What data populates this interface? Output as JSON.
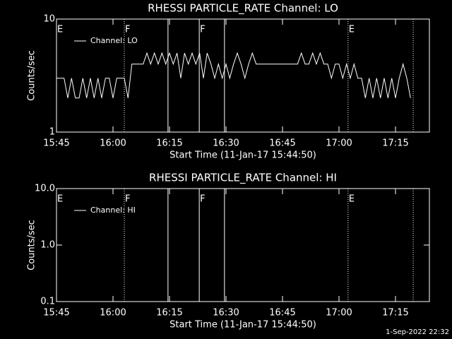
{
  "chart_data": [
    {
      "type": "line",
      "title": "RHESSI PARTICLE_RATE Channel: LO",
      "x_label": "Start Time (11-Jan-17 15:44:50)",
      "y_label": "Counts/sec",
      "log_y": true,
      "legend": "upper left",
      "xlim": [
        945,
        1044
      ],
      "ylim": [
        1,
        10
      ],
      "xticks": [
        {
          "value": 945,
          "label": "15:45"
        },
        {
          "value": 960,
          "label": "16:00"
        },
        {
          "value": 975,
          "label": "16:15"
        },
        {
          "value": 990,
          "label": "16:30"
        },
        {
          "value": 1005,
          "label": "16:45"
        },
        {
          "value": 1020,
          "label": "17:00"
        },
        {
          "value": 1035,
          "label": "17:15"
        }
      ],
      "yticks": [
        1,
        10
      ],
      "vlines": [
        {
          "x": 963,
          "style": "dotted"
        },
        {
          "x": 974.6,
          "style": "solid"
        },
        {
          "x": 982.9,
          "style": "solid"
        },
        {
          "x": 989.6,
          "style": "solid"
        },
        {
          "x": 1022.4,
          "style": "dotted"
        },
        {
          "x": 1039.7,
          "style": "dotted"
        }
      ],
      "flags": [
        {
          "x": 945,
          "label": "E"
        },
        {
          "x": 963,
          "label": "F"
        },
        {
          "x": 982.9,
          "label": "F"
        },
        {
          "x": 1022.4,
          "label": "E"
        }
      ],
      "x": [
        945,
        946,
        947,
        948,
        949,
        950,
        951,
        952,
        953,
        954,
        955,
        956,
        957,
        958,
        959,
        960,
        961,
        962,
        963,
        964,
        965,
        966,
        967,
        968,
        969,
        970,
        971,
        972,
        973,
        974,
        975,
        976,
        977,
        978,
        979,
        980,
        981,
        982,
        983,
        984,
        985,
        986,
        987,
        988,
        989,
        990,
        991,
        992,
        993,
        994,
        995,
        996,
        997,
        998,
        999,
        1000,
        1001,
        1002,
        1003,
        1004,
        1005,
        1006,
        1007,
        1008,
        1009,
        1010,
        1011,
        1012,
        1013,
        1014,
        1015,
        1016,
        1017,
        1018,
        1019,
        1020,
        1021,
        1022,
        1023,
        1024,
        1025,
        1026,
        1027,
        1028,
        1029,
        1030,
        1031,
        1032,
        1033,
        1034,
        1035,
        1036,
        1037,
        1038,
        1039
      ],
      "series": [
        {
          "name": "Channel: LO",
          "color": "#ffffff",
          "values": [
            3,
            3,
            3,
            2,
            3,
            2,
            2,
            3,
            2,
            3,
            2,
            3,
            2,
            3,
            3,
            2,
            3,
            3,
            3,
            2,
            4,
            4,
            4,
            4,
            5,
            4,
            5,
            4,
            5,
            4,
            5,
            4,
            5,
            3,
            5,
            4,
            5,
            4,
            5,
            3,
            5,
            4,
            3,
            4,
            3,
            4,
            3,
            4,
            5,
            4,
            3,
            4,
            5,
            4,
            4,
            4,
            4,
            4,
            4,
            4,
            4,
            4,
            4,
            4,
            4,
            5,
            4,
            4,
            5,
            4,
            5,
            4,
            4,
            3,
            4,
            4,
            3,
            4,
            3,
            4,
            3,
            3,
            2,
            3,
            2,
            3,
            2,
            3,
            2,
            3,
            2,
            3,
            4,
            3,
            2
          ]
        }
      ]
    },
    {
      "type": "line",
      "title": "RHESSI PARTICLE_RATE Channel: HI",
      "x_label": "Start Time (11-Jan-17 15:44:50)",
      "y_label": "Counts/sec",
      "log_y": true,
      "legend": "upper left",
      "xlim": [
        945,
        1044
      ],
      "ylim": [
        0.1,
        10
      ],
      "xticks": [
        {
          "value": 945,
          "label": "15:45"
        },
        {
          "value": 960,
          "label": "16:00"
        },
        {
          "value": 975,
          "label": "16:15"
        },
        {
          "value": 990,
          "label": "16:30"
        },
        {
          "value": 1005,
          "label": "16:45"
        },
        {
          "value": 1020,
          "label": "17:00"
        },
        {
          "value": 1035,
          "label": "17:15"
        }
      ],
      "yticks": [
        0.1,
        {
          "value": 1,
          "label": "1.0"
        },
        {
          "value": 10,
          "label": "10.0"
        }
      ],
      "vlines": [
        {
          "x": 963,
          "style": "dotted"
        },
        {
          "x": 974.6,
          "style": "solid"
        },
        {
          "x": 982.9,
          "style": "solid"
        },
        {
          "x": 989.6,
          "style": "solid"
        },
        {
          "x": 1022.4,
          "style": "dotted"
        },
        {
          "x": 1039.7,
          "style": "dotted"
        }
      ],
      "flags": [
        {
          "x": 945,
          "label": "E"
        },
        {
          "x": 963,
          "label": "F"
        },
        {
          "x": 982.9,
          "label": "F"
        },
        {
          "x": 1022.4,
          "label": "E"
        }
      ],
      "x": [],
      "series": [
        {
          "name": "Channel: HI",
          "color": "#ffffff",
          "values": []
        }
      ]
    }
  ],
  "footer": "1-Sep-2022 22:32"
}
